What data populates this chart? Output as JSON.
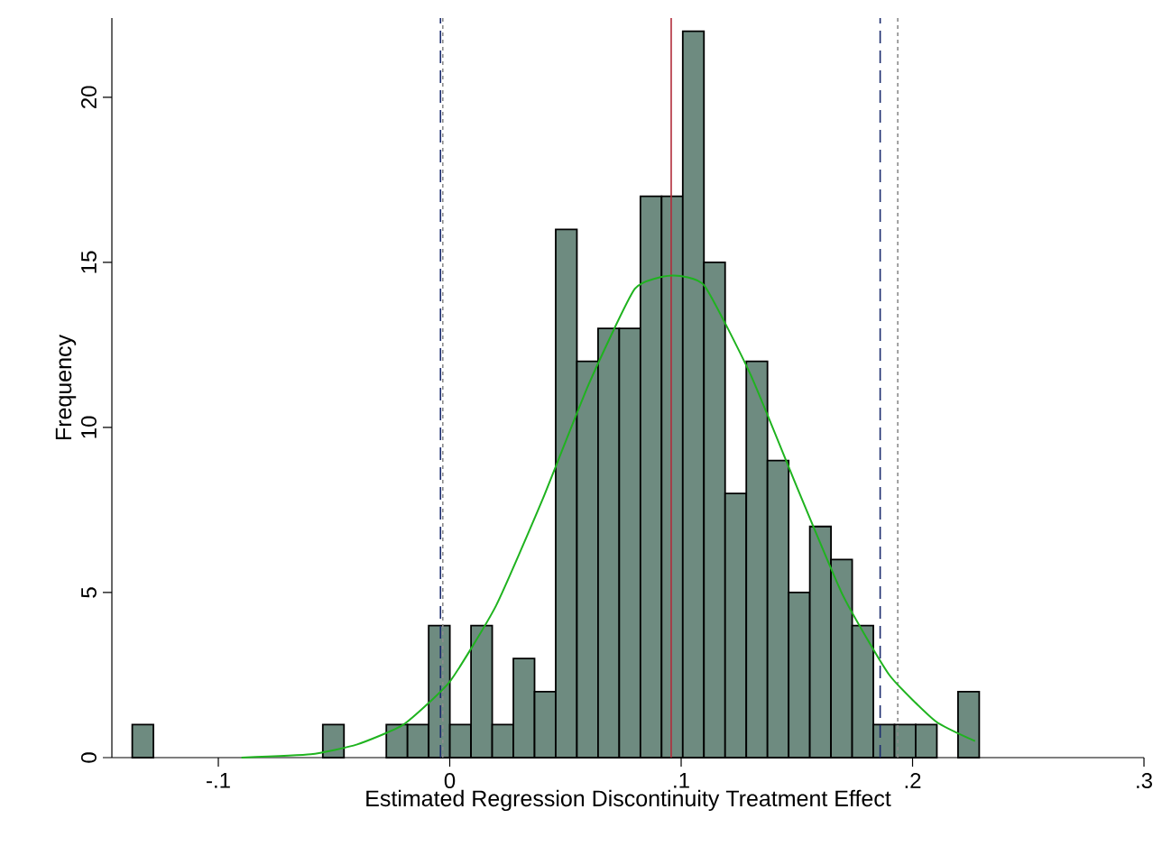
{
  "chart_data": {
    "type": "histogram",
    "xlabel": "Estimated Regression Discontinuity Treatment Effect",
    "ylabel": "Frequency",
    "bins": [
      -0.1372,
      -0.12805,
      -0.1189,
      -0.10975,
      -0.1006,
      -0.09145,
      -0.0823,
      -0.07315,
      -0.064,
      -0.05485,
      -0.0457,
      -0.03655,
      -0.0274,
      -0.01825,
      -0.0091,
      5e-05,
      0.0092,
      0.01835,
      0.0275,
      0.03665,
      0.0458,
      0.05495,
      0.0641,
      0.07325,
      0.0824,
      0.09155,
      0.1007,
      0.10985,
      0.119,
      0.12815,
      0.1373,
      0.14645,
      0.1556,
      0.16475,
      0.1739,
      0.18305,
      0.1922,
      0.20135,
      0.2105,
      0.21965,
      0.2288
    ],
    "values": [
      1,
      0,
      0,
      0,
      0,
      0,
      0,
      0,
      0,
      1,
      0,
      0,
      1,
      1,
      4,
      1,
      4,
      1,
      3,
      2,
      16,
      12,
      13,
      13,
      17,
      17,
      22,
      15,
      8,
      12,
      9,
      5,
      7,
      6,
      4,
      1,
      1,
      1,
      0,
      2
    ],
    "color": "#6e8b80",
    "series": [
      {
        "type": "line",
        "color": "#1fb31f",
        "x": [
          -0.09,
          -0.06,
          -0.04,
          -0.02,
          0,
          0.02,
          0.04,
          0.06,
          0.08,
          0.096,
          0.11,
          0.13,
          0.15,
          0.17,
          0.19,
          0.21,
          0.227
        ],
        "values": [
          0.0,
          0.1,
          0.4,
          1.0,
          2.3,
          4.6,
          7.8,
          11.3,
          14.2,
          14.6,
          14.3,
          11.6,
          8.2,
          4.9,
          2.5,
          1.1,
          0.5
        ]
      }
    ],
    "ref_lines": [
      {
        "axis": "x",
        "value": -0.004,
        "color": "#1a2b6e",
        "line_style": "dashed"
      },
      {
        "axis": "x",
        "value": -0.003,
        "color": "#8c8c8c",
        "line_style": "dotted"
      },
      {
        "axis": "x",
        "value": 0.0957,
        "color": "#b22c3a",
        "line_style": "solid"
      },
      {
        "axis": "x",
        "value": 0.186,
        "color": "#1a2b6e",
        "line_style": "dashed"
      },
      {
        "axis": "x",
        "value": 0.1936,
        "color": "#8c8c8c",
        "line_style": "dotted"
      }
    ],
    "xlim": [
      -0.146,
      0.3
    ],
    "ylim": [
      0,
      22.4
    ],
    "xticks": [
      {
        "value": -0.1,
        "label": "-.1"
      },
      0,
      {
        "value": 0.1,
        "label": ".1"
      },
      {
        "value": 0.2,
        "label": ".2"
      },
      {
        "value": 0.3,
        "label": ".3"
      }
    ],
    "yticks": [
      0,
      5,
      10,
      15,
      20
    ]
  }
}
